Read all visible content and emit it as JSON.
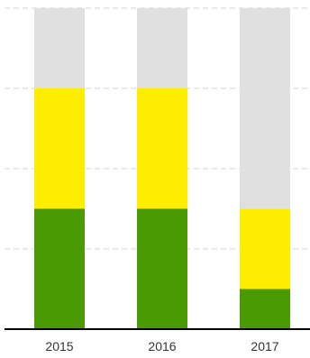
{
  "chart_data": {
    "type": "bar",
    "stacked": true,
    "categories": [
      "2015",
      "2016",
      "2017"
    ],
    "series": [
      {
        "color": "#4a9a04",
        "values": [
          30,
          30,
          10
        ]
      },
      {
        "color": "#ffed00",
        "values": [
          30,
          30,
          20
        ]
      },
      {
        "color": "#e0e0e0",
        "values": [
          20,
          20,
          50
        ]
      }
    ],
    "ylim": [
      0,
      80
    ],
    "grid": true,
    "gridlines": [
      20,
      40,
      60,
      80
    ],
    "title": "",
    "xlabel": "",
    "ylabel": ""
  }
}
